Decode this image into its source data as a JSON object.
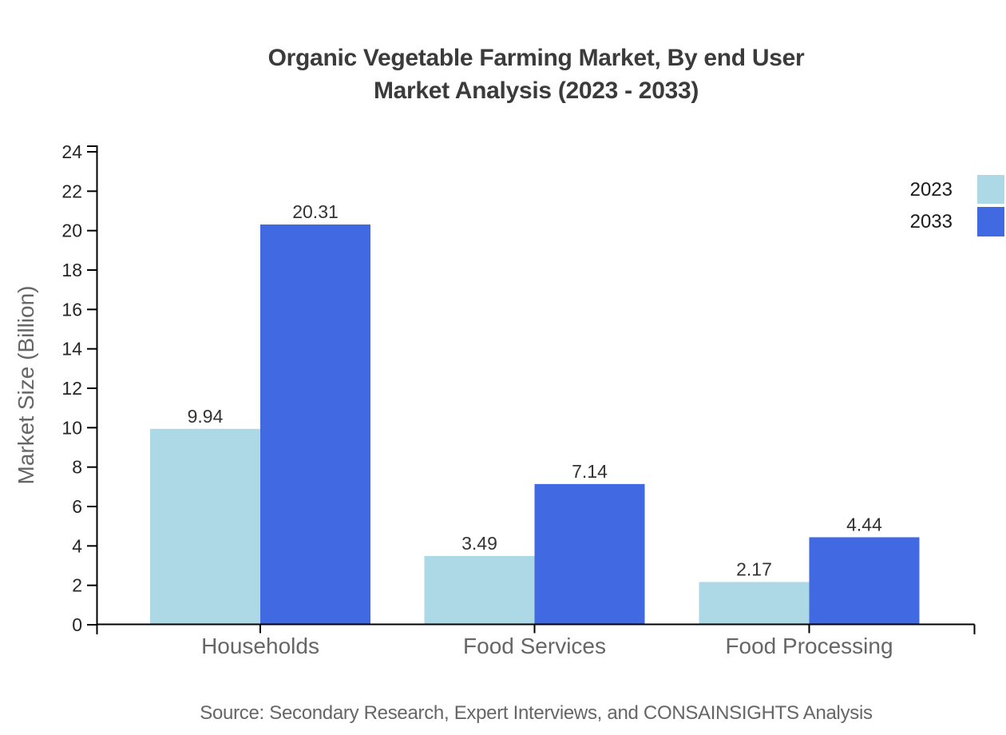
{
  "title": {
    "line1": "Organic Vegetable Farming Market, By end User",
    "line2": "Market Analysis (2023 - 2033)"
  },
  "legend": [
    {
      "label": "2023",
      "color": "#ADD8E6"
    },
    {
      "label": "2033",
      "color": "#4169E1"
    }
  ],
  "footer": {
    "source": "Source: Secondary Research, Expert Interviews, and CONSAINSIGHTS Analysis"
  },
  "colors": {
    "bar_2023": "#ADD8E6",
    "bar_2033": "#4169E1",
    "axis": "#000000",
    "tick_label": "#262626",
    "value_label": "#333333",
    "muted_text": "#666666",
    "title_text": "#3b3b3b"
  },
  "chart_data": {
    "type": "bar",
    "title": "Organic Vegetable Farming Market, By end User — Market Analysis (2023 - 2033)",
    "categories": [
      "Households",
      "Food Services",
      "Food Processing"
    ],
    "series": [
      {
        "name": "2023",
        "color": "#ADD8E6",
        "values": [
          9.94,
          3.49,
          2.17
        ]
      },
      {
        "name": "2033",
        "color": "#4169E1",
        "values": [
          20.31,
          7.14,
          4.44
        ]
      }
    ],
    "xlabel": "",
    "ylabel": "Market Size (Billion)",
    "ylim": [
      0,
      24
    ],
    "ytick_step": 2,
    "yticks": [
      0,
      2,
      4,
      6,
      8,
      10,
      12,
      14,
      16,
      18,
      20,
      22,
      24
    ],
    "grid": false,
    "value_labels": true,
    "legend_position": "top-right"
  }
}
